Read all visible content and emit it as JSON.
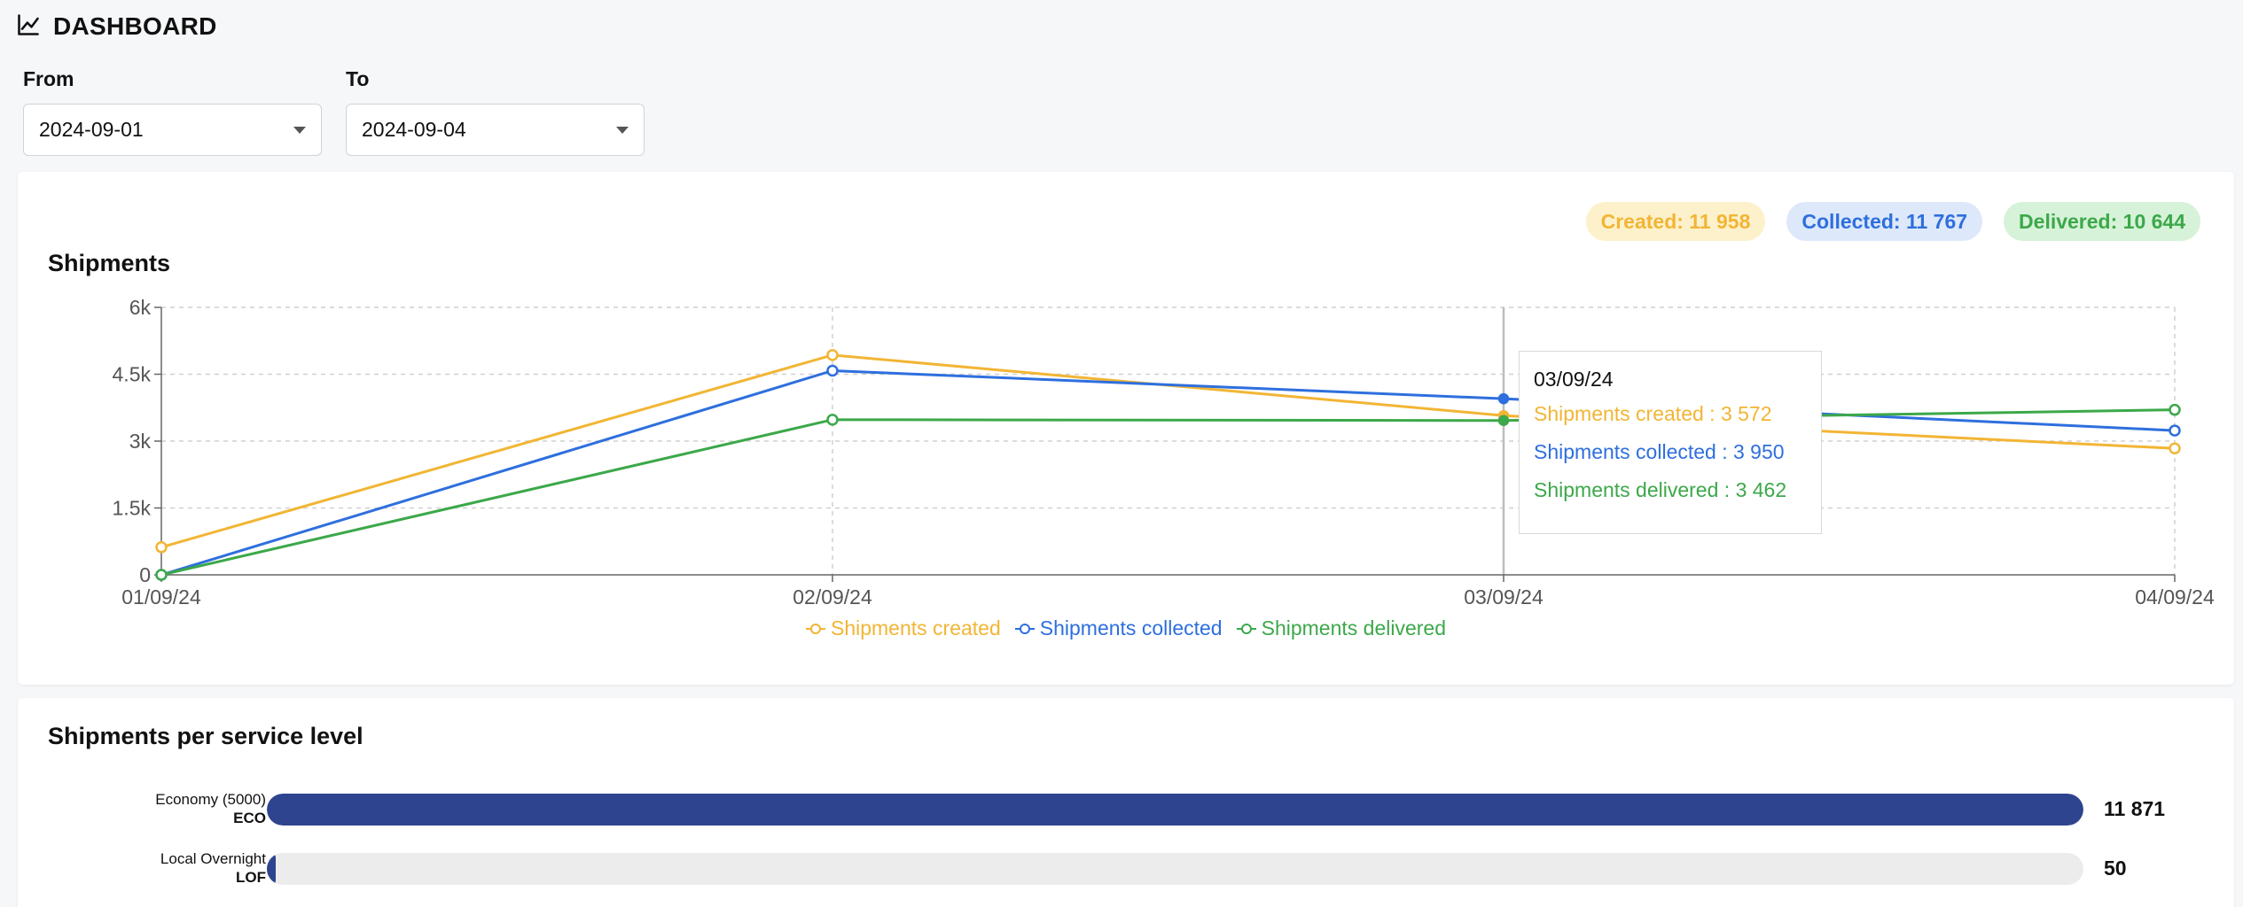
{
  "header": {
    "title": "DASHBOARD",
    "icon": "line-chart-icon"
  },
  "filters": {
    "from": {
      "label": "From",
      "value": "2024-09-01"
    },
    "to": {
      "label": "To",
      "value": "2024-09-04"
    }
  },
  "summary": {
    "created": "Created: 11 958",
    "collected": "Collected: 11 767",
    "delivered": "Delivered: 10 644"
  },
  "colors": {
    "created": "#f2b534",
    "collected": "#2e6fde",
    "delivered": "#3ca84a",
    "bar": "#2e448f"
  },
  "shipments_chart": {
    "title": "Shipments",
    "tooltip": {
      "date": "03/09/24",
      "created": "Shipments created : 3 572",
      "collected": "Shipments collected : 3 950",
      "delivered": "Shipments delivered : 3 462"
    }
  },
  "chart_data": {
    "type": "line",
    "x": [
      "01/09/24",
      "02/09/24",
      "03/09/24",
      "04/09/24"
    ],
    "y_ticks": [
      "0",
      "1.5k",
      "3k",
      "4.5k",
      "6k"
    ],
    "ylim": [
      0,
      6000
    ],
    "grid": true,
    "legend": "bottom",
    "series": [
      {
        "name": "Shipments created",
        "key": "created",
        "values": [
          620,
          4930,
          3572,
          2836
        ]
      },
      {
        "name": "Shipments collected",
        "key": "collected",
        "values": [
          0,
          4580,
          3950,
          3237
        ]
      },
      {
        "name": "Shipments delivered",
        "key": "delivered",
        "values": [
          0,
          3480,
          3462,
          3702
        ]
      }
    ]
  },
  "service_levels": {
    "title": "Shipments per service level",
    "max": 11871,
    "items": [
      {
        "name": "Economy (5000)",
        "code": "ECO",
        "value": 11871,
        "value_label": "11 871"
      },
      {
        "name": "Local Overnight",
        "code": "LOF",
        "value": 50,
        "value_label": "50"
      }
    ]
  }
}
